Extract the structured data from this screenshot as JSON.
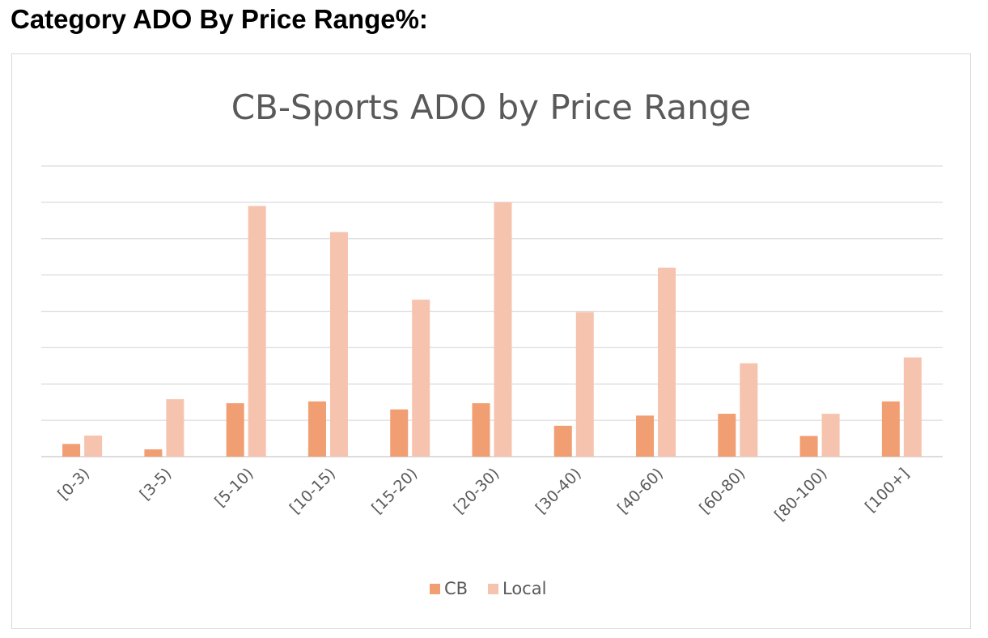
{
  "heading": "Category ADO By Price Range%:",
  "chart_data": {
    "type": "bar",
    "title": "CB-Sports ADO by Price Range",
    "xlabel": "",
    "ylabel": "",
    "categories": [
      "[0-3)",
      "[3-5)",
      "[5-10)",
      "[10-15)",
      "[15-20)",
      "[20-30)",
      "[30-40)",
      "[40-60)",
      "[60-80)",
      "[80-100)",
      "[100+]"
    ],
    "series": [
      {
        "name": "CB",
        "color": "#f09e72",
        "values": [
          0.35,
          0.2,
          1.47,
          1.52,
          1.3,
          1.47,
          0.85,
          1.13,
          1.18,
          0.57,
          1.52
        ]
      },
      {
        "name": "Local",
        "color": "#f6c3ae",
        "values": [
          0.58,
          1.58,
          6.9,
          6.18,
          4.32,
          7.0,
          3.98,
          5.2,
          2.57,
          1.18,
          2.73
        ]
      }
    ],
    "ylim": [
      0,
      8
    ],
    "gridlines": 8,
    "grid": true,
    "y_tick_labels_shown": false,
    "legend_position": "bottom"
  }
}
